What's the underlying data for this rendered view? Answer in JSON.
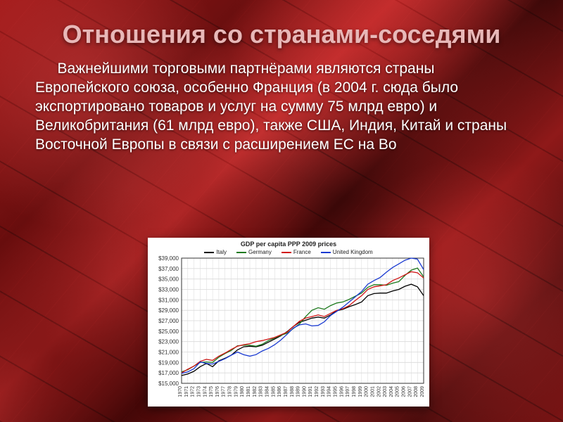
{
  "title": "Отношения со странами-соседями",
  "body": "Важнейшими торговыми партнёрами являются страны Европейского союза, особенно Франция (в 2004 г. сюда было экспортировано товаров и услуг на сумму 75 млрд евро) и Великобритания (61 млрд евро), также США, Индия, Китай и страны Восточной Европы в связи с расширением ЕС на Во",
  "chart": {
    "type": "line",
    "title": "GDP per capita PPP 2009 prices",
    "background_color": "#ffffff",
    "grid_color": "#d9d9d9",
    "axis_color": "#333333",
    "title_fontsize": 9,
    "label_fontsize": 8,
    "xtick_fontsize": 7,
    "line_width": 1.3,
    "years": [
      1970,
      1971,
      1972,
      1973,
      1974,
      1975,
      1976,
      1977,
      1978,
      1979,
      1980,
      1981,
      1982,
      1983,
      1984,
      1985,
      1986,
      1987,
      1988,
      1989,
      1990,
      1991,
      1992,
      1993,
      1994,
      1995,
      1996,
      1997,
      1998,
      1999,
      2000,
      2001,
      2002,
      2003,
      2004,
      2005,
      2006,
      2007,
      2008,
      2009
    ],
    "ylim": [
      15000,
      39000
    ],
    "ytick_step": 2000,
    "yprefix": "$",
    "series": [
      {
        "name": "Italy",
        "color": "#000000",
        "values": [
          16500,
          16800,
          17300,
          18200,
          18800,
          18200,
          19300,
          19800,
          20400,
          21400,
          22000,
          22100,
          22000,
          22300,
          22900,
          23500,
          24100,
          24900,
          25900,
          26700,
          27100,
          27500,
          27700,
          27500,
          28100,
          28900,
          29200,
          29700,
          30100,
          30600,
          31800,
          32200,
          32300,
          32300,
          32700,
          33000,
          33600,
          34000,
          33500,
          31800
        ]
      },
      {
        "name": "Germany",
        "color": "#1e7a1e",
        "values": [
          17200,
          17600,
          18300,
          19000,
          19100,
          19000,
          20000,
          20700,
          21300,
          22200,
          22300,
          22300,
          22100,
          22500,
          23200,
          23700,
          24200,
          24600,
          25500,
          26400,
          27800,
          29000,
          29500,
          29200,
          29900,
          30400,
          30600,
          31100,
          31700,
          32300,
          33400,
          33900,
          33900,
          33800,
          34200,
          34500,
          35700,
          36700,
          37100,
          35400
        ]
      },
      {
        "name": "France",
        "color": "#d11414",
        "values": [
          17000,
          17700,
          18300,
          19200,
          19600,
          19400,
          20200,
          20800,
          21500,
          22100,
          22400,
          22600,
          23000,
          23200,
          23500,
          23800,
          24300,
          24800,
          25900,
          26900,
          27500,
          27800,
          28100,
          27800,
          28400,
          29000,
          29300,
          29900,
          30900,
          31800,
          33000,
          33500,
          33700,
          33900,
          34700,
          35200,
          35800,
          36400,
          36200,
          35200
        ]
      },
      {
        "name": "United Kingdom",
        "color": "#1a3ad1",
        "values": [
          16900,
          17200,
          17800,
          19100,
          18800,
          18700,
          19200,
          19700,
          20400,
          21000,
          20500,
          20200,
          20500,
          21200,
          21700,
          22400,
          23300,
          24400,
          25600,
          26200,
          26400,
          26000,
          26100,
          26800,
          28000,
          28800,
          29600,
          30600,
          31600,
          32600,
          34000,
          34700,
          35300,
          36300,
          37200,
          37900,
          38600,
          39000,
          38800,
          36800
        ]
      }
    ]
  }
}
